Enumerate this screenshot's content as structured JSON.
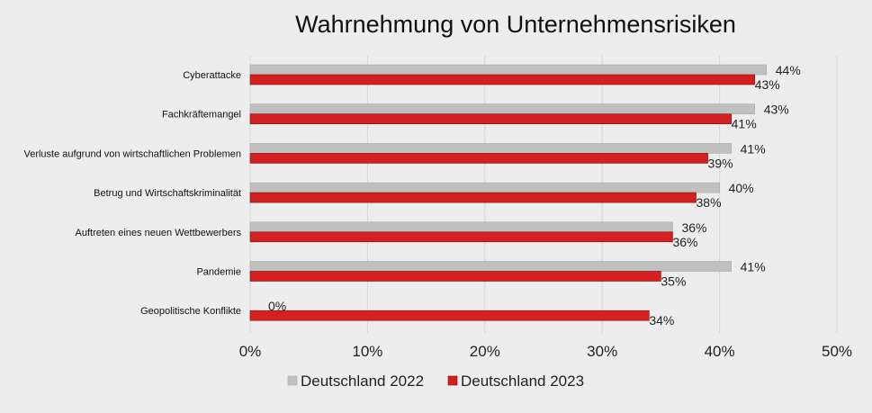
{
  "chart_data": {
    "type": "bar",
    "orientation": "horizontal",
    "title": "Wahrnehmung von Unternehmensrisiken",
    "categories": [
      "Cyberattacke",
      "Fachkräftemangel",
      "Verluste aufgrund von wirtschaftlichen Problemen",
      "Betrug und Wirtschaftskriminalität",
      "Auftreten eines neuen Wettbewerbers",
      "Pandemie",
      "Geopolitische Konflikte"
    ],
    "series": [
      {
        "name": "Deutschland 2022",
        "color": "#c0c0c0",
        "values": [
          44,
          43,
          41,
          40,
          36,
          41,
          0
        ]
      },
      {
        "name": "Deutschland 2023",
        "color": "#d42020",
        "values": [
          43,
          41,
          39,
          38,
          36,
          35,
          34
        ]
      }
    ],
    "xlim": [
      0,
      50
    ],
    "xticks": [
      "0%",
      "10%",
      "20%",
      "30%",
      "40%",
      "50%"
    ],
    "value_suffix": "%",
    "grid": "vertical",
    "legend_position": "bottom"
  }
}
